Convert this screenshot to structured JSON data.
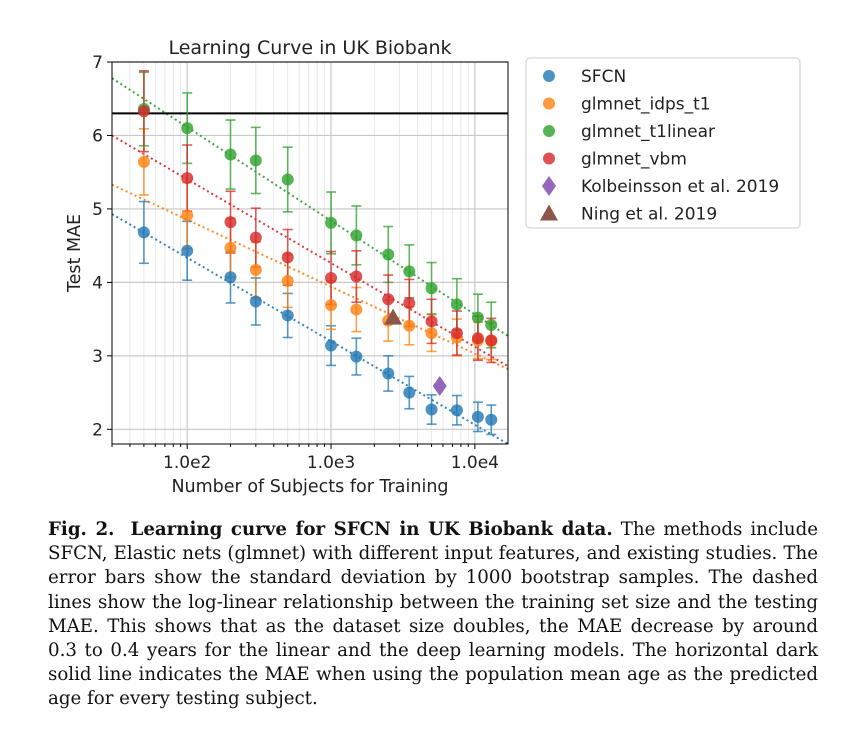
{
  "chart_data": {
    "type": "scatter",
    "title": "Learning Curve in UK Biobank",
    "xlabel": "Number of Subjects for Training",
    "ylabel": "Test MAE",
    "xscale": "log",
    "xlim": [
      30,
      17000
    ],
    "ylim": [
      1.8,
      7.0
    ],
    "xticks": [
      {
        "value": 100,
        "label": "1.0e2"
      },
      {
        "value": 1000,
        "label": "1.0e3"
      },
      {
        "value": 10000,
        "label": "1.0e4"
      }
    ],
    "yticks": [
      2,
      3,
      4,
      5,
      6,
      7
    ],
    "grid": true,
    "legend_position": "outside-right",
    "reference_line": {
      "y": 6.3,
      "color": "#000000",
      "description": "population mean age baseline"
    },
    "series": [
      {
        "name": "SFCN",
        "color": "#1f77b4",
        "marker": "circle",
        "x": [
          50,
          100,
          200,
          300,
          500,
          1000,
          1500,
          2500,
          3500,
          5000,
          7500,
          10500,
          13000
        ],
        "y": [
          4.68,
          4.43,
          4.07,
          3.74,
          3.55,
          3.14,
          2.99,
          2.76,
          2.5,
          2.27,
          2.26,
          2.17,
          2.13
        ],
        "err": [
          0.42,
          0.4,
          0.35,
          0.32,
          0.3,
          0.27,
          0.25,
          0.24,
          0.22,
          0.2,
          0.2,
          0.2,
          0.2
        ],
        "trend": {
          "x": [
            30,
            17000
          ],
          "y": [
            4.93,
            1.8
          ]
        }
      },
      {
        "name": "glmnet_idps_t1",
        "color": "#ff7f0e",
        "marker": "circle",
        "x": [
          50,
          100,
          200,
          300,
          500,
          1000,
          1500,
          2500,
          3500,
          5000,
          7500,
          10500,
          13000
        ],
        "y": [
          5.64,
          4.91,
          4.47,
          4.17,
          4.02,
          3.69,
          3.63,
          3.48,
          3.41,
          3.31,
          3.25,
          3.21,
          3.2
        ],
        "err": [
          0.45,
          0.45,
          0.4,
          0.38,
          0.36,
          0.33,
          0.3,
          0.28,
          0.26,
          0.25,
          0.25,
          0.25,
          0.25
        ],
        "trend": {
          "x": [
            30,
            17000
          ],
          "y": [
            5.33,
            2.82
          ]
        }
      },
      {
        "name": "glmnet_t1linear",
        "color": "#2ca02c",
        "marker": "circle",
        "x": [
          50,
          100,
          200,
          300,
          500,
          1000,
          1500,
          2500,
          3500,
          5000,
          7500,
          10500,
          13000
        ],
        "y": [
          6.36,
          6.1,
          5.74,
          5.66,
          5.4,
          4.81,
          4.64,
          4.38,
          4.15,
          3.92,
          3.7,
          3.52,
          3.42
        ],
        "err": [
          0.5,
          0.48,
          0.47,
          0.45,
          0.44,
          0.42,
          0.4,
          0.38,
          0.36,
          0.35,
          0.35,
          0.32,
          0.31
        ],
        "trend": {
          "x": [
            30,
            17000
          ],
          "y": [
            6.78,
            3.27
          ]
        }
      },
      {
        "name": "glmnet_vbm",
        "color": "#d62728",
        "marker": "circle",
        "x": [
          50,
          100,
          200,
          300,
          500,
          1000,
          1500,
          2500,
          3500,
          5000,
          7500,
          10500,
          13000
        ],
        "y": [
          6.33,
          5.42,
          4.82,
          4.61,
          4.34,
          4.06,
          4.08,
          3.77,
          3.72,
          3.47,
          3.31,
          3.24,
          3.21
        ],
        "err": [
          0.55,
          0.45,
          0.42,
          0.4,
          0.38,
          0.36,
          0.35,
          0.33,
          0.32,
          0.3,
          0.3,
          0.3,
          0.3
        ],
        "trend": {
          "x": [
            30,
            17000
          ],
          "y": [
            6.0,
            2.86
          ]
        }
      },
      {
        "name": "Kolbeinsson et al. 2019",
        "color": "#9467bd",
        "marker": "diamond",
        "x": [
          5700
        ],
        "y": [
          2.59
        ]
      },
      {
        "name": "Ning et al. 2019",
        "color": "#8c564b",
        "marker": "triangle",
        "x": [
          2700
        ],
        "y": [
          3.52
        ]
      }
    ]
  },
  "caption": {
    "label": "Fig. 2.",
    "title": "Learning curve for SFCN in UK Biobank data.",
    "text": "The methods include SFCN, Elastic nets (glmnet) with different input features, and existing studies. The error bars show the standard deviation by 1000 bootstrap samples. The dashed lines show the log-linear relationship between the training set size and the testing MAE. This shows that as the dataset size doubles, the MAE decrease by around 0.3 to 0.4 years for the linear and the deep learning models. The horizontal dark solid line indicates the MAE when using the population mean age as the predicted age for every testing subject."
  }
}
